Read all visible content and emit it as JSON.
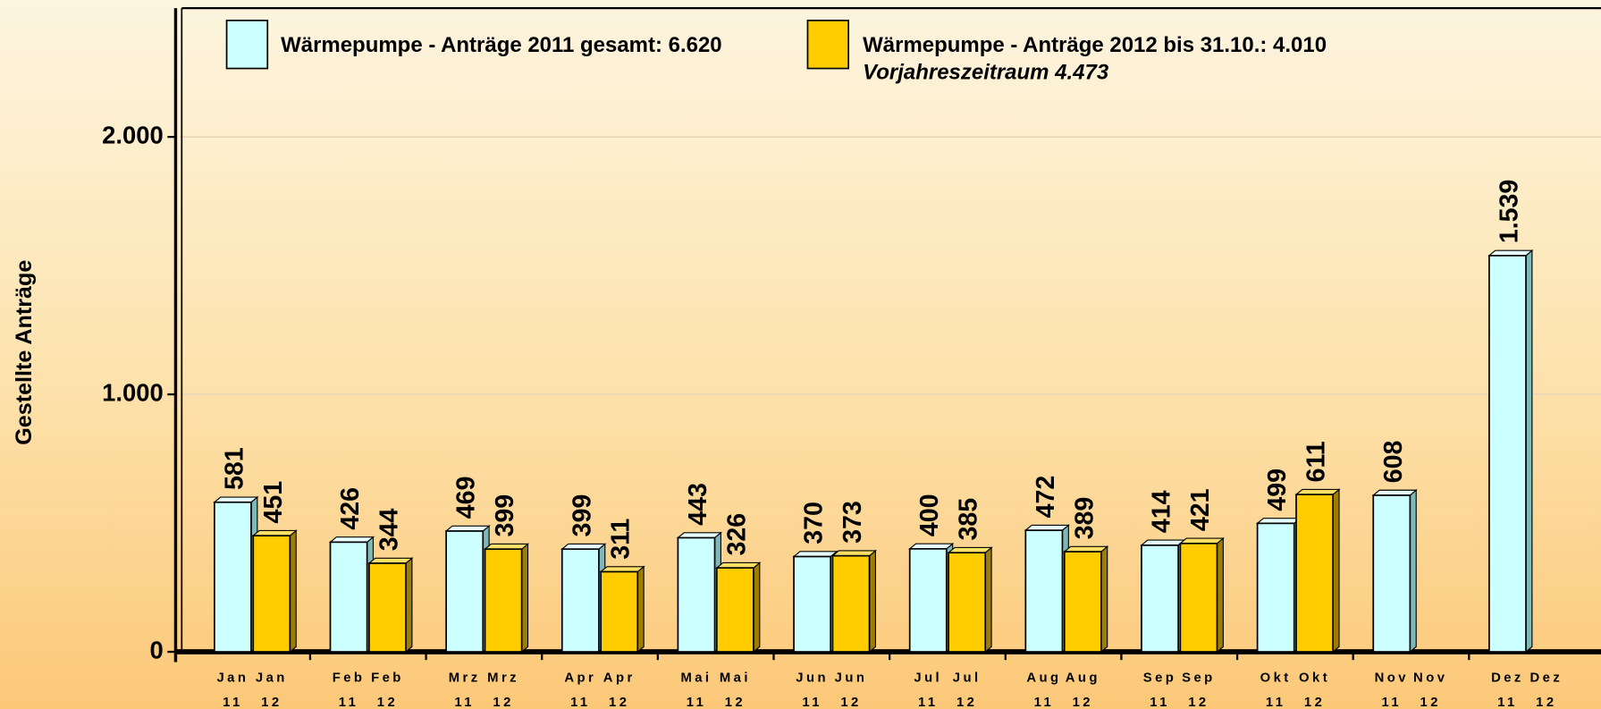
{
  "chart_data": {
    "type": "bar",
    "y_axis_label": "Gestellte Anträge",
    "categories": [
      "Jan",
      "Feb",
      "Mrz",
      "Apr",
      "Mai",
      "Jun",
      "Jul",
      "Aug",
      "Sep",
      "Okt",
      "Nov",
      "Dez"
    ],
    "series": [
      {
        "name": "Wärmepumpe - Anträge 2011 gesamt: 6.620",
        "sublabel": "11",
        "color": "#ccffff",
        "values": [
          581,
          426,
          469,
          399,
          443,
          370,
          400,
          472,
          414,
          499,
          608,
          1539
        ],
        "value_labels": [
          "581",
          "426",
          "469",
          "399",
          "443",
          "370",
          "400",
          "472",
          "414",
          "499",
          "608",
          "1.539"
        ]
      },
      {
        "name": "Wärmepumpe - Anträge 2012 bis 31.10.: 4.010",
        "sublabel": "12",
        "color": "#ffcc00",
        "note": "Vorjahreszeitraum 4.473",
        "values": [
          451,
          344,
          399,
          311,
          326,
          373,
          385,
          389,
          421,
          611,
          null,
          null
        ]
      }
    ],
    "ylim": [
      0,
      2500
    ],
    "yticks": [
      0,
      {
        "value": 1000,
        "label": "1.000"
      },
      {
        "value": 2000,
        "label": "2.000"
      }
    ],
    "grid": true
  }
}
